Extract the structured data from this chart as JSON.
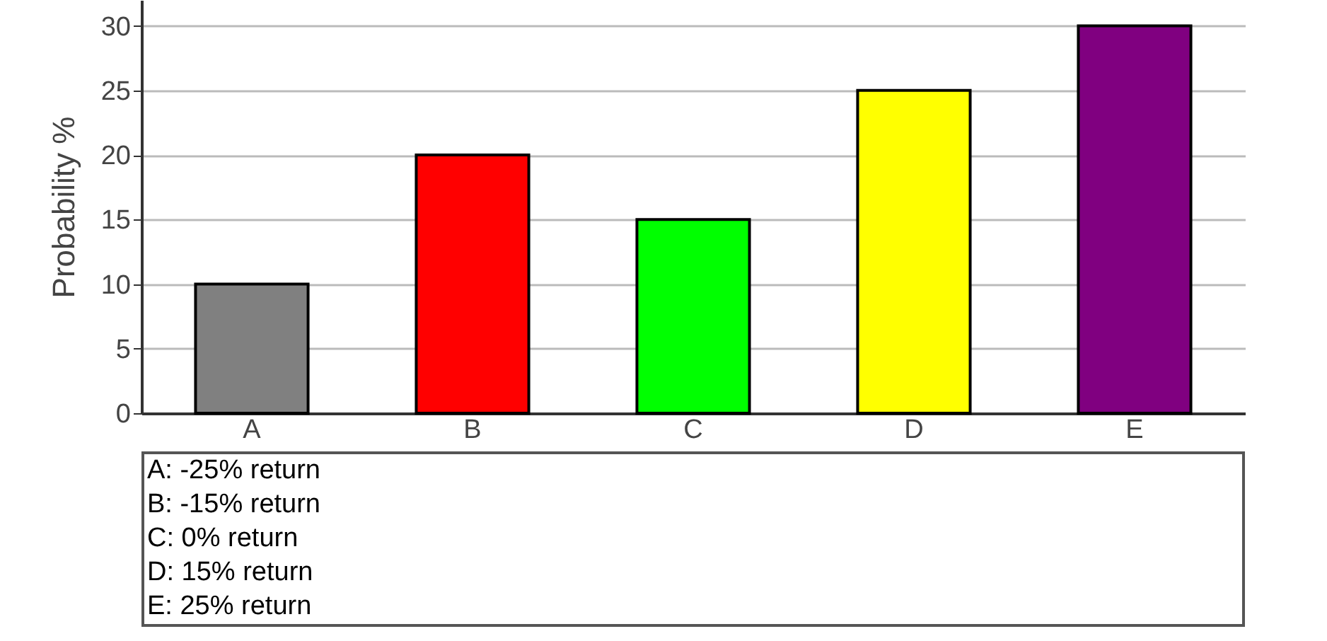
{
  "chart_data": {
    "type": "bar",
    "ylabel": "Probability %",
    "categories": [
      "A",
      "B",
      "C",
      "D",
      "E"
    ],
    "values": [
      10,
      20,
      15,
      25,
      30
    ],
    "colors": [
      "#808080",
      "#ff0000",
      "#00ff00",
      "#ffff00",
      "#800080"
    ],
    "ylim": [
      0,
      32
    ],
    "yticks": [
      0,
      5,
      10,
      15,
      20,
      25,
      30
    ],
    "grid": "y",
    "annotations": [
      "A: -25% return",
      "B: -15% return",
      "C: 0% return",
      "D: 15% return",
      "E: 25% return"
    ]
  }
}
